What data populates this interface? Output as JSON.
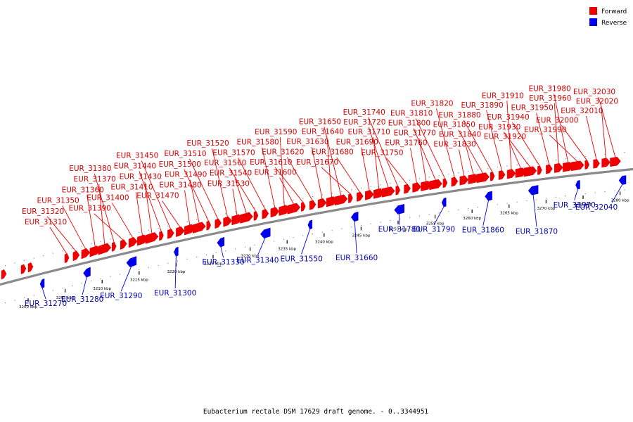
{
  "colors": {
    "forward": "#ee0000",
    "reverse": "#0000ee",
    "backbone": "#8a8a8a"
  },
  "legend": {
    "forward_label": "Forward",
    "reverse_label": "Reverse"
  },
  "caption": "Eubacterium rectale DSM 17629 draft genome. - 0..3344951",
  "ticks": [
    "3200 kbp",
    "3205 kbp",
    "3210 kbp",
    "3215 kbp",
    "3220 kbp",
    "3225 kbp",
    "3230 kbp",
    "3235 kbp",
    "3240 kbp",
    "3245 kbp",
    "3250 kbp",
    "3255 kbp",
    "3260 kbp",
    "3265 kbp",
    "3270 kbp",
    "3275 kbp",
    "3280 kbp"
  ],
  "forward_genes": [
    "EUR_31310",
    "EUR_31320",
    "EUR_31350",
    "EUR_31360",
    "EUR_31370",
    "EUR_31380",
    "EUR_31390",
    "EUR_31400",
    "EUR_31410",
    "EUR_31430",
    "EUR_31440",
    "EUR_31450",
    "EUR_31470",
    "EUR_31480",
    "EUR_31490",
    "EUR_31500",
    "EUR_31510",
    "EUR_31520",
    "EUR_31530",
    "EUR_31540",
    "EUR_31560",
    "EUR_31570",
    "EUR_31580",
    "EUR_31590",
    "EUR_31600",
    "EUR_31610",
    "EUR_31620",
    "EUR_31630",
    "EUR_31640",
    "EUR_31650",
    "EUR_31670",
    "EUR_31680",
    "EUR_31690",
    "EUR_31710",
    "EUR_31720",
    "EUR_31740",
    "EUR_31750",
    "EUR_31760",
    "EUR_31770",
    "EUR_31800",
    "EUR_31810",
    "EUR_31820",
    "EUR_31830",
    "EUR_31840",
    "EUR_31850",
    "EUR_31880",
    "EUR_31890",
    "EUR_31910",
    "EUR_31920",
    "EUR_31930",
    "EUR_31940",
    "EUR_31950",
    "EUR_31960",
    "EUR_31980",
    "EUR_31990",
    "EUR_32000",
    "EUR_32010",
    "EUR_32020",
    "EUR_32030"
  ],
  "reverse_genes": [
    "EUR_31270",
    "EUR_31280",
    "EUR_31290",
    "EUR_31300",
    "EUR_31330",
    "EUR_31340",
    "EUR_31550",
    "EUR_31660",
    "EUR_31780",
    "EUR_31790",
    "EUR_31860",
    "EUR_31870",
    "EUR_31970",
    "EUR_32040"
  ]
}
